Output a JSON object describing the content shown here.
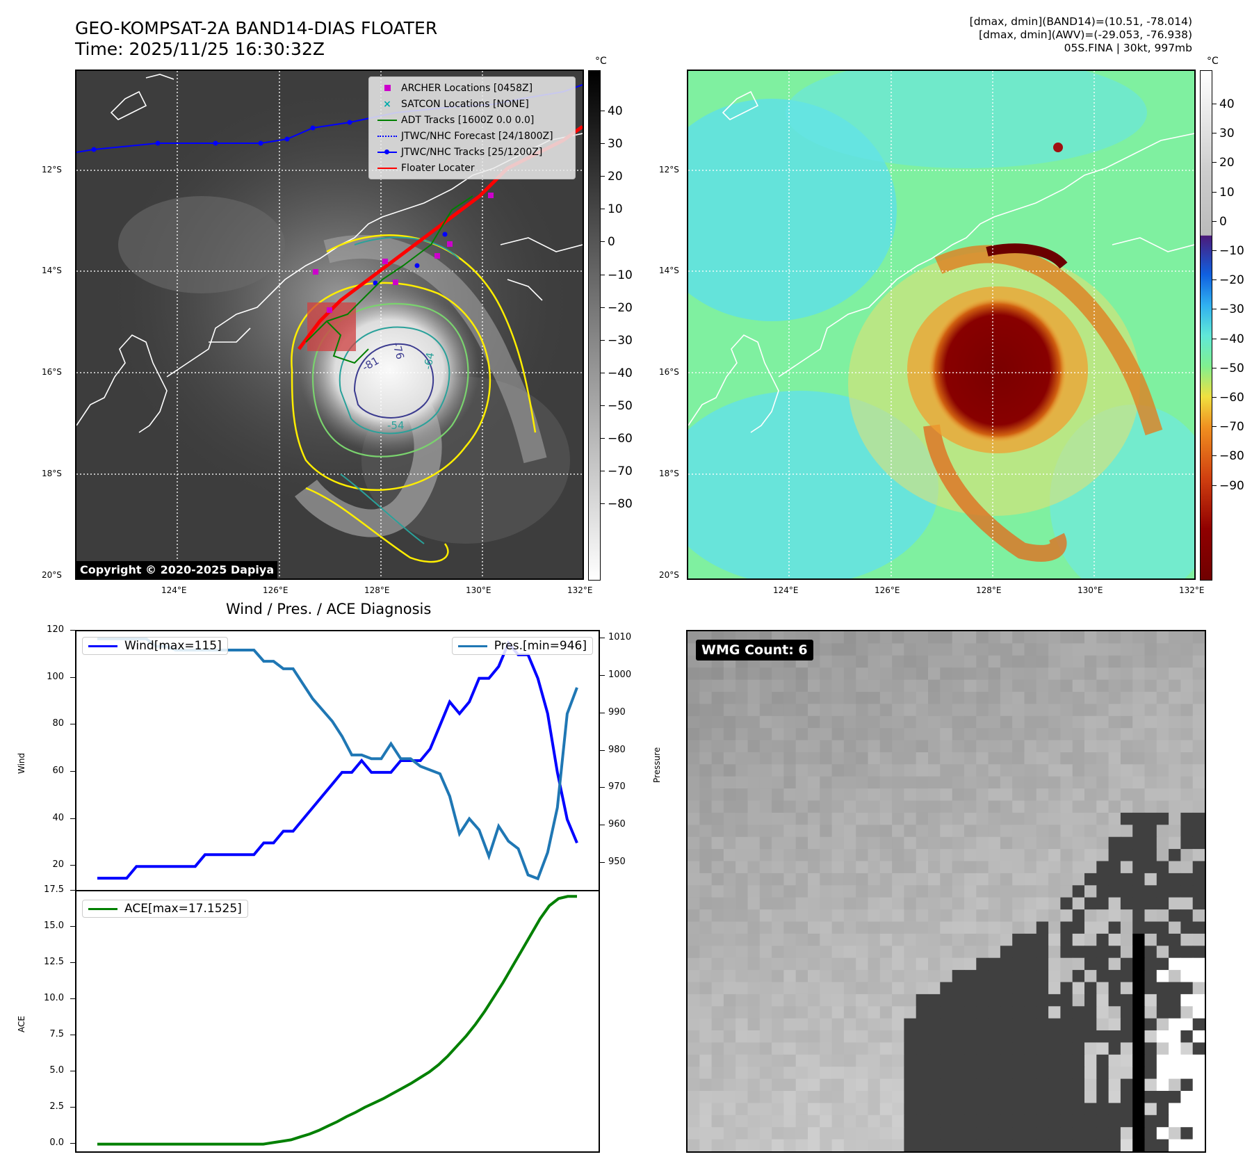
{
  "header": {
    "title_line1": "GEO-KOMPSAT-2A BAND14-DIAS FLOATER",
    "title_line2": "Time: 2025/11/25 16:30:32Z",
    "info_line1": "[dmax, dmin](BAND14)=(10.51, -78.014)",
    "info_line2": "[dmax, dmin](AWV)=(-29.053, -76.938)",
    "info_line3": "05S.FINA | 30kt, 997mb"
  },
  "map": {
    "lat_labels": [
      "12°S",
      "14°S",
      "16°S",
      "18°S",
      "20°S"
    ],
    "lon_labels": [
      "124°E",
      "126°E",
      "128°E",
      "130°E",
      "132°E"
    ],
    "copyright": "Copyright © 2020-2025 Dapiya",
    "legend": [
      {
        "label": "ARCHER Locations [0458Z]",
        "color": "#cc00cc",
        "marker": "square"
      },
      {
        "label": "SATCON Locations [NONE]",
        "color": "#00aaaa",
        "marker": "x"
      },
      {
        "label": "ADT Tracks [1600Z 0.0 0.0]",
        "color": "#007f00",
        "marker": "line"
      },
      {
        "label": "JTWC/NHC Forecast [24/1800Z]",
        "color": "#0000ff",
        "marker": "dotted"
      },
      {
        "label": "JTWC/NHC Tracks [25/1200Z]",
        "color": "#0000ff",
        "marker": "line-dot"
      },
      {
        "label": "Floater Locater",
        "color": "#ff0000",
        "marker": "line"
      }
    ],
    "contour_labels": [
      "-76",
      "-81",
      "-64",
      "-54"
    ]
  },
  "colorbar_left": {
    "unit": "°C",
    "ticks": [
      "40",
      "30",
      "20",
      "10",
      "0",
      "−10",
      "−20",
      "−30",
      "−40",
      "−50",
      "−60",
      "−70",
      "−80"
    ]
  },
  "colorbar_right": {
    "unit": "°C",
    "ticks": [
      "40",
      "30",
      "20",
      "10",
      "0",
      "−10",
      "−20",
      "−30",
      "−40",
      "−50",
      "−60",
      "−70",
      "−80",
      "−90"
    ]
  },
  "wmg": {
    "label": "WMG Count: 6"
  },
  "chart_data": [
    {
      "type": "line",
      "title": "Wind / Pres. / ACE Diagnosis",
      "ylabel": "Wind",
      "ylabel_right": "Pressure",
      "ylim": [
        10,
        120
      ],
      "ylim_right": [
        943,
        1012
      ],
      "yticks": [
        20,
        40,
        60,
        80,
        100,
        120
      ],
      "yticks_right": [
        950,
        960,
        970,
        980,
        990,
        1000,
        1010
      ],
      "series": [
        {
          "name": "Wind[max=115]",
          "color": "#0000ff",
          "axis": "left",
          "values": [
            15,
            15,
            15,
            15,
            20,
            20,
            20,
            20,
            20,
            20,
            20,
            25,
            25,
            25,
            25,
            25,
            25,
            30,
            30,
            35,
            35,
            40,
            45,
            50,
            55,
            60,
            60,
            65,
            60,
            60,
            60,
            65,
            65,
            65,
            70,
            80,
            90,
            85,
            90,
            100,
            100,
            105,
            115,
            110,
            110,
            100,
            85,
            60,
            40,
            30
          ]
        },
        {
          "name": "Pres.[min=946]",
          "color": "#1f77b4",
          "axis": "right",
          "values": [
            1010,
            1010,
            1010,
            1010,
            1010,
            1010,
            1008,
            1008,
            1007,
            1007,
            1007,
            1007,
            1007,
            1007,
            1007,
            1007,
            1007,
            1004,
            1004,
            1002,
            1002,
            998,
            994,
            991,
            988,
            984,
            979,
            979,
            978,
            978,
            982,
            978,
            978,
            976,
            975,
            974,
            968,
            958,
            962,
            959,
            952,
            960,
            956,
            954,
            947,
            946,
            953,
            965,
            990,
            997
          ]
        }
      ]
    },
    {
      "type": "line",
      "ylabel": "ACE",
      "ylim": [
        -0.5,
        17.5
      ],
      "yticks": [
        0.0,
        2.5,
        5.0,
        7.5,
        10.0,
        12.5,
        15.0,
        17.5
      ],
      "ytick_labels": [
        "0.0",
        "2.5",
        "5.0",
        "7.5",
        "10.0",
        "12.5",
        "15.0",
        "17.5"
      ],
      "series": [
        {
          "name": "ACE[max=17.1525]",
          "color": "#008000",
          "values": [
            0,
            0,
            0,
            0,
            0,
            0,
            0,
            0,
            0,
            0,
            0,
            0,
            0,
            0,
            0,
            0,
            0,
            0,
            0,
            0.1,
            0.2,
            0.3,
            0.5,
            0.7,
            0.95,
            1.25,
            1.55,
            1.9,
            2.2,
            2.55,
            2.85,
            3.15,
            3.5,
            3.85,
            4.2,
            4.6,
            5.0,
            5.5,
            6.1,
            6.8,
            7.5,
            8.3,
            9.2,
            10.2,
            11.2,
            12.3,
            13.4,
            14.5,
            15.6,
            16.5,
            17.0,
            17.15,
            17.15
          ]
        }
      ]
    }
  ]
}
